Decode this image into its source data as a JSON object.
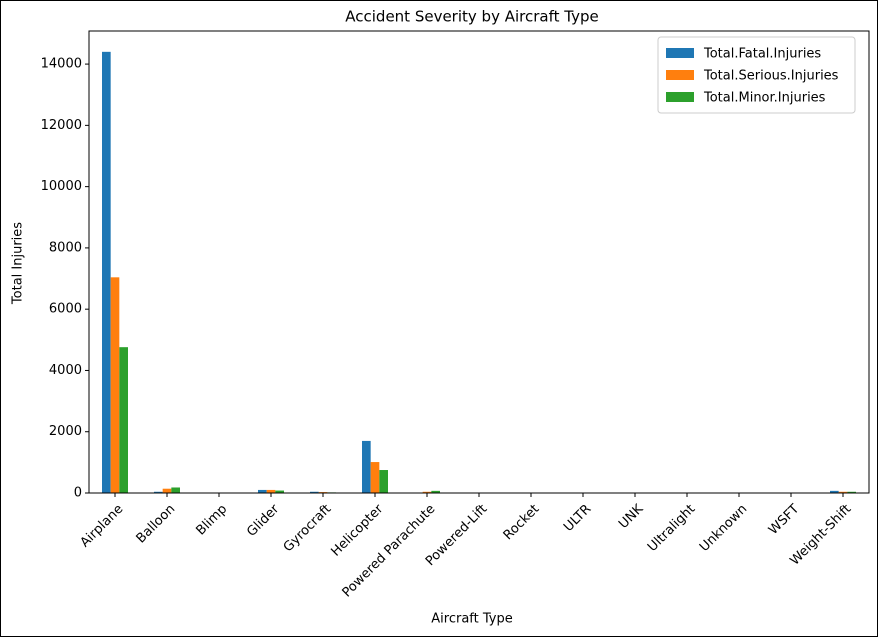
{
  "chart_data": {
    "type": "bar",
    "title": "Accident Severity by Aircraft Type",
    "xlabel": "Aircraft Type",
    "ylabel": "Total Injuries",
    "categories": [
      "Airplane",
      "Balloon",
      "Blimp",
      "Glider",
      "Gyrocraft",
      "Helicopter",
      "Powered Parachute",
      "Powered-Lift",
      "Rocket",
      "ULTR",
      "UNK",
      "Ultralight",
      "Unknown",
      "WSFT",
      "Weight-Shift"
    ],
    "series": [
      {
        "name": "Total.Fatal.Injuries",
        "color": "#1f77b4",
        "values": [
          14400,
          40,
          0,
          100,
          40,
          1700,
          10,
          0,
          0,
          0,
          0,
          0,
          0,
          0,
          70
        ]
      },
      {
        "name": "Total.Serious.Injuries",
        "color": "#ff7f0e",
        "values": [
          7040,
          140,
          0,
          100,
          30,
          1010,
          40,
          0,
          0,
          0,
          0,
          0,
          0,
          0,
          40
        ]
      },
      {
        "name": "Total.Minor.Injuries",
        "color": "#2ca02c",
        "values": [
          4760,
          180,
          0,
          80,
          20,
          750,
          70,
          0,
          0,
          0,
          0,
          0,
          0,
          0,
          40
        ]
      }
    ],
    "ylim": [
      0,
      15080
    ],
    "yticks": [
      0,
      2000,
      4000,
      6000,
      8000,
      10000,
      12000,
      14000
    ],
    "legend": "upper right"
  }
}
